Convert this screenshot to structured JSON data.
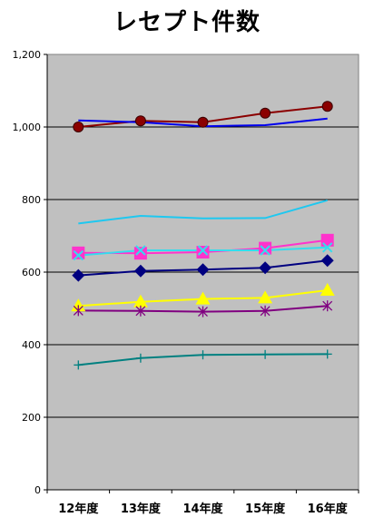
{
  "chart_data": {
    "type": "line",
    "title": "レセプト件数",
    "xlabel": "",
    "ylabel": "",
    "categories": [
      "12年度",
      "13年度",
      "14年度",
      "15年度",
      "16年度"
    ],
    "ylim": [
      0,
      1200
    ],
    "yticks": [
      0,
      200,
      400,
      600,
      800,
      1000,
      1200
    ],
    "ytick_labels": [
      "0",
      "200",
      "400",
      "600",
      "800",
      "1,000",
      "1,200"
    ],
    "grid": true,
    "plot_background": "#c0c0c0",
    "series": [
      {
        "values": [
          1000,
          1017,
          1013,
          1038,
          1057
        ],
        "color": "#8b0000",
        "marker": "circle"
      },
      {
        "values": [
          1018,
          1013,
          1002,
          1005,
          1023
        ],
        "color": "#0000ee",
        "marker": "none"
      },
      {
        "values": [
          734,
          755,
          748,
          749,
          798
        ],
        "color": "#1ec8f0",
        "marker": "none"
      },
      {
        "values": [
          653,
          652,
          655,
          666,
          688
        ],
        "color": "#ff33cc",
        "marker": "square"
      },
      {
        "values": [
          646,
          660,
          660,
          660,
          668
        ],
        "color": "#33ddee",
        "marker": "x"
      },
      {
        "values": [
          591,
          603,
          607,
          612,
          632
        ],
        "color": "#000080",
        "marker": "diamond"
      },
      {
        "values": [
          507,
          518,
          526,
          529,
          550
        ],
        "color": "#ffff00",
        "marker": "triangle"
      },
      {
        "values": [
          494,
          493,
          491,
          493,
          507
        ],
        "color": "#800080",
        "marker": "asterisk"
      },
      {
        "values": [
          344,
          363,
          372,
          373,
          374
        ],
        "color": "#008080",
        "marker": "plus"
      }
    ]
  }
}
